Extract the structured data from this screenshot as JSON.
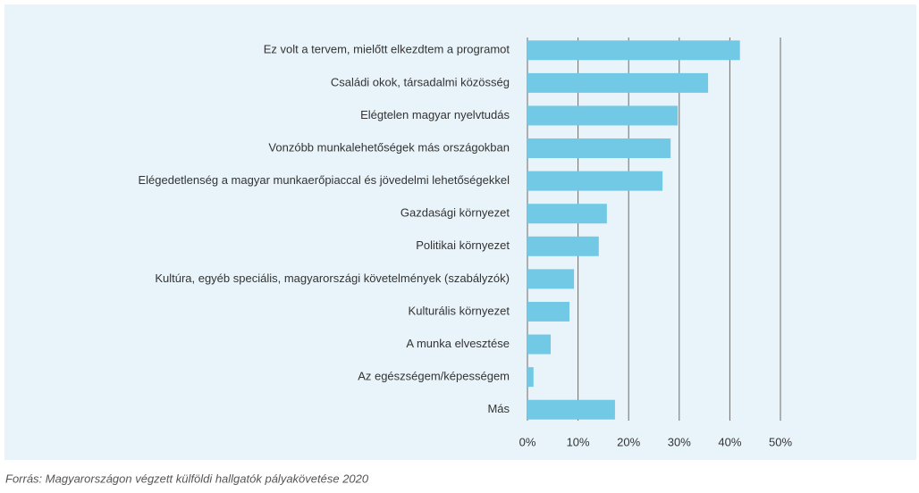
{
  "chart_data": {
    "type": "bar",
    "orientation": "horizontal",
    "categories": [
      "Ez volt a tervem, mielőtt elkezdtem a programot",
      "Családi okok, társadalmi közösség",
      "Elégtelen magyar nyelvtudás",
      "Vonzóbb munkalehetőségek más országokban",
      "Elégedetlenség a magyar munkaerőpiaccal és jövedelmi lehetőségekkel",
      "Gazdasági környezet",
      "Politikai környezet",
      "Kultúra, egyéb speciális, magyarországi követelmények (szabályzók)",
      "Kulturális környezet",
      "A munka elvesztése",
      "Az egészségem/képességem",
      "Más"
    ],
    "values": [
      42.0,
      35.7,
      29.7,
      28.3,
      26.7,
      15.7,
      14.1,
      9.2,
      8.3,
      4.6,
      1.2,
      17.3
    ],
    "color": "#72c9e5",
    "xlim": [
      0,
      50
    ],
    "xticks": [
      {
        "value": 0,
        "label": "0%"
      },
      {
        "value": 10,
        "label": "10%"
      },
      {
        "value": 20,
        "label": "20%"
      },
      {
        "value": 30,
        "label": "30%"
      },
      {
        "value": 40,
        "label": "40%"
      },
      {
        "value": 50,
        "label": "50%"
      }
    ],
    "grid": true,
    "source": "Forrás: Magyarországon végzett külföldi hallgatók pályakövetése 2020"
  }
}
